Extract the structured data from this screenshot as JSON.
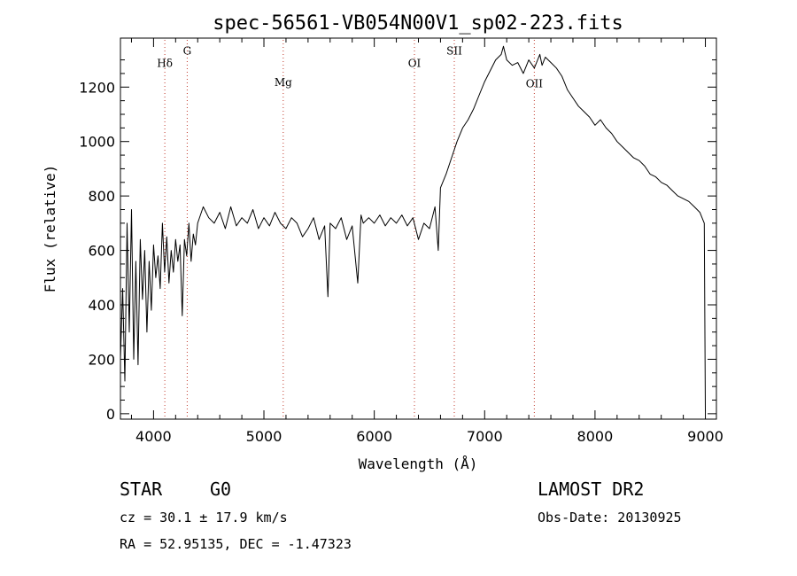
{
  "chart_data": {
    "type": "line",
    "title": "spec-56561-VB054N00V1_sp02-223.fits",
    "xlabel": "Wavelength (Å)",
    "ylabel": "Flux (relative)",
    "xlim": [
      3700,
      9100
    ],
    "ylim": [
      -20,
      1380
    ],
    "xticks": [
      4000,
      5000,
      6000,
      7000,
      8000,
      9000
    ],
    "yticks": [
      0,
      200,
      400,
      600,
      800,
      1000,
      1200
    ],
    "grid": false,
    "line_color": "#000000",
    "marker_color": "#c0392b",
    "series": [
      {
        "x": [
          3700,
          3720,
          3740,
          3760,
          3780,
          3800,
          3820,
          3840,
          3860,
          3880,
          3900,
          3920,
          3940,
          3960,
          3980,
          4000,
          4020,
          4040,
          4060,
          4080,
          4100,
          4120,
          4140,
          4160,
          4180,
          4200,
          4220,
          4240,
          4260,
          4280,
          4300,
          4320,
          4340,
          4360,
          4380,
          4400,
          4450,
          4500,
          4550,
          4600,
          4650,
          4700,
          4750,
          4800,
          4850,
          4900,
          4950,
          5000,
          5050,
          5100,
          5150,
          5200,
          5250,
          5300,
          5350,
          5400,
          5450,
          5500,
          5550,
          5580,
          5600,
          5650,
          5700,
          5750,
          5800,
          5850,
          5880,
          5900,
          5950,
          6000,
          6050,
          6100,
          6150,
          6200,
          6250,
          6300,
          6350,
          6400,
          6450,
          6500,
          6550,
          6580,
          6600,
          6650,
          6700,
          6750,
          6800,
          6850,
          6900,
          6950,
          7000,
          7050,
          7100,
          7150,
          7170,
          7200,
          7250,
          7300,
          7350,
          7400,
          7450,
          7500,
          7520,
          7550,
          7600,
          7650,
          7700,
          7750,
          7800,
          7850,
          7900,
          7950,
          8000,
          8050,
          8100,
          8150,
          8200,
          8250,
          8300,
          8350,
          8400,
          8450,
          8500,
          8550,
          8600,
          8650,
          8700,
          8750,
          8800,
          8850,
          8900,
          8950,
          8990,
          9000
        ],
        "y": [
          200,
          460,
          120,
          700,
          300,
          750,
          200,
          560,
          180,
          640,
          420,
          600,
          300,
          560,
          380,
          620,
          500,
          580,
          460,
          700,
          520,
          650,
          480,
          600,
          520,
          640,
          560,
          620,
          360,
          640,
          580,
          700,
          560,
          660,
          620,
          700,
          760,
          720,
          700,
          740,
          680,
          760,
          690,
          720,
          700,
          750,
          680,
          720,
          690,
          740,
          700,
          680,
          720,
          700,
          650,
          680,
          720,
          640,
          690,
          430,
          700,
          680,
          720,
          640,
          690,
          480,
          730,
          700,
          720,
          700,
          730,
          690,
          720,
          700,
          730,
          690,
          720,
          640,
          700,
          680,
          760,
          600,
          830,
          880,
          940,
          1000,
          1050,
          1080,
          1120,
          1170,
          1220,
          1260,
          1300,
          1320,
          1350,
          1300,
          1280,
          1290,
          1250,
          1300,
          1270,
          1320,
          1280,
          1310,
          1290,
          1270,
          1240,
          1190,
          1160,
          1130,
          1110,
          1090,
          1060,
          1080,
          1050,
          1030,
          1000,
          980,
          960,
          940,
          930,
          910,
          880,
          870,
          850,
          840,
          820,
          800,
          790,
          780,
          760,
          740,
          700,
          10
        ]
      }
    ],
    "lines": [
      {
        "label": "Hδ",
        "x": 4102,
        "label_y": 1275
      },
      {
        "label": "G",
        "x": 4305,
        "label_y": 1320
      },
      {
        "label": "Mg",
        "x": 5175,
        "label_y": 1205
      },
      {
        "label": "OI",
        "x": 6364,
        "label_y": 1275
      },
      {
        "label": "SII",
        "x": 6725,
        "label_y": 1320
      },
      {
        "label": "OII",
        "x": 7450,
        "label_y": 1200
      }
    ]
  },
  "info": {
    "class": "STAR",
    "subclass": "G0",
    "survey": "LAMOST DR2",
    "cz": "cz = 30.1 ± 17.9 km/s",
    "obs_date": "Obs-Date: 20130925",
    "radec": "RA =  52.95135, DEC =  -1.47323"
  }
}
